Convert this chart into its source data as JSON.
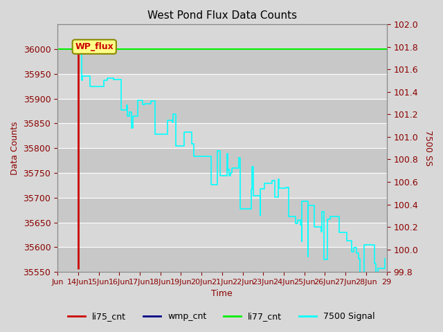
{
  "title": "West Pond Flux Data Counts",
  "xlabel": "Time",
  "ylabel_left": "Data Counts",
  "ylabel_right": "7500 SS",
  "ylim_left": [
    35550,
    36050
  ],
  "ylim_right": [
    99.8,
    102.0
  ],
  "fig_bg_color": "#d8d8d8",
  "plot_bg_color": "#d8d8d8",
  "annotation_text": "WP_flux",
  "li77_cnt_value": 36000,
  "legend_labels": [
    "li75_cnt",
    "wmp_cnt",
    "li77_cnt",
    "7500 Signal"
  ],
  "legend_colors": [
    "#cc0000",
    "#000099",
    "#00cc00",
    "#00cccc"
  ],
  "tick_label_color": "#8B0000",
  "xtick_fontsize": 8,
  "ytick_fontsize": 9,
  "title_fontsize": 11,
  "xtick_labels": [
    "Jun",
    "14Jun",
    "15Jun",
    "16Jun",
    "17Jun",
    "18Jun",
    "19Jun",
    "20Jun",
    "21Jun",
    "22Jun",
    "23Jun",
    "24Jun",
    "25Jun",
    "26Jun",
    "27Jun",
    "28Jun",
    "29"
  ],
  "left_yticks": [
    35550,
    35600,
    35650,
    35700,
    35750,
    35800,
    35850,
    35900,
    35950,
    36000
  ],
  "right_yticks": [
    99.8,
    100.0,
    100.2,
    100.4,
    100.6,
    100.8,
    101.0,
    101.2,
    101.4,
    101.6,
    101.8,
    102.0
  ]
}
